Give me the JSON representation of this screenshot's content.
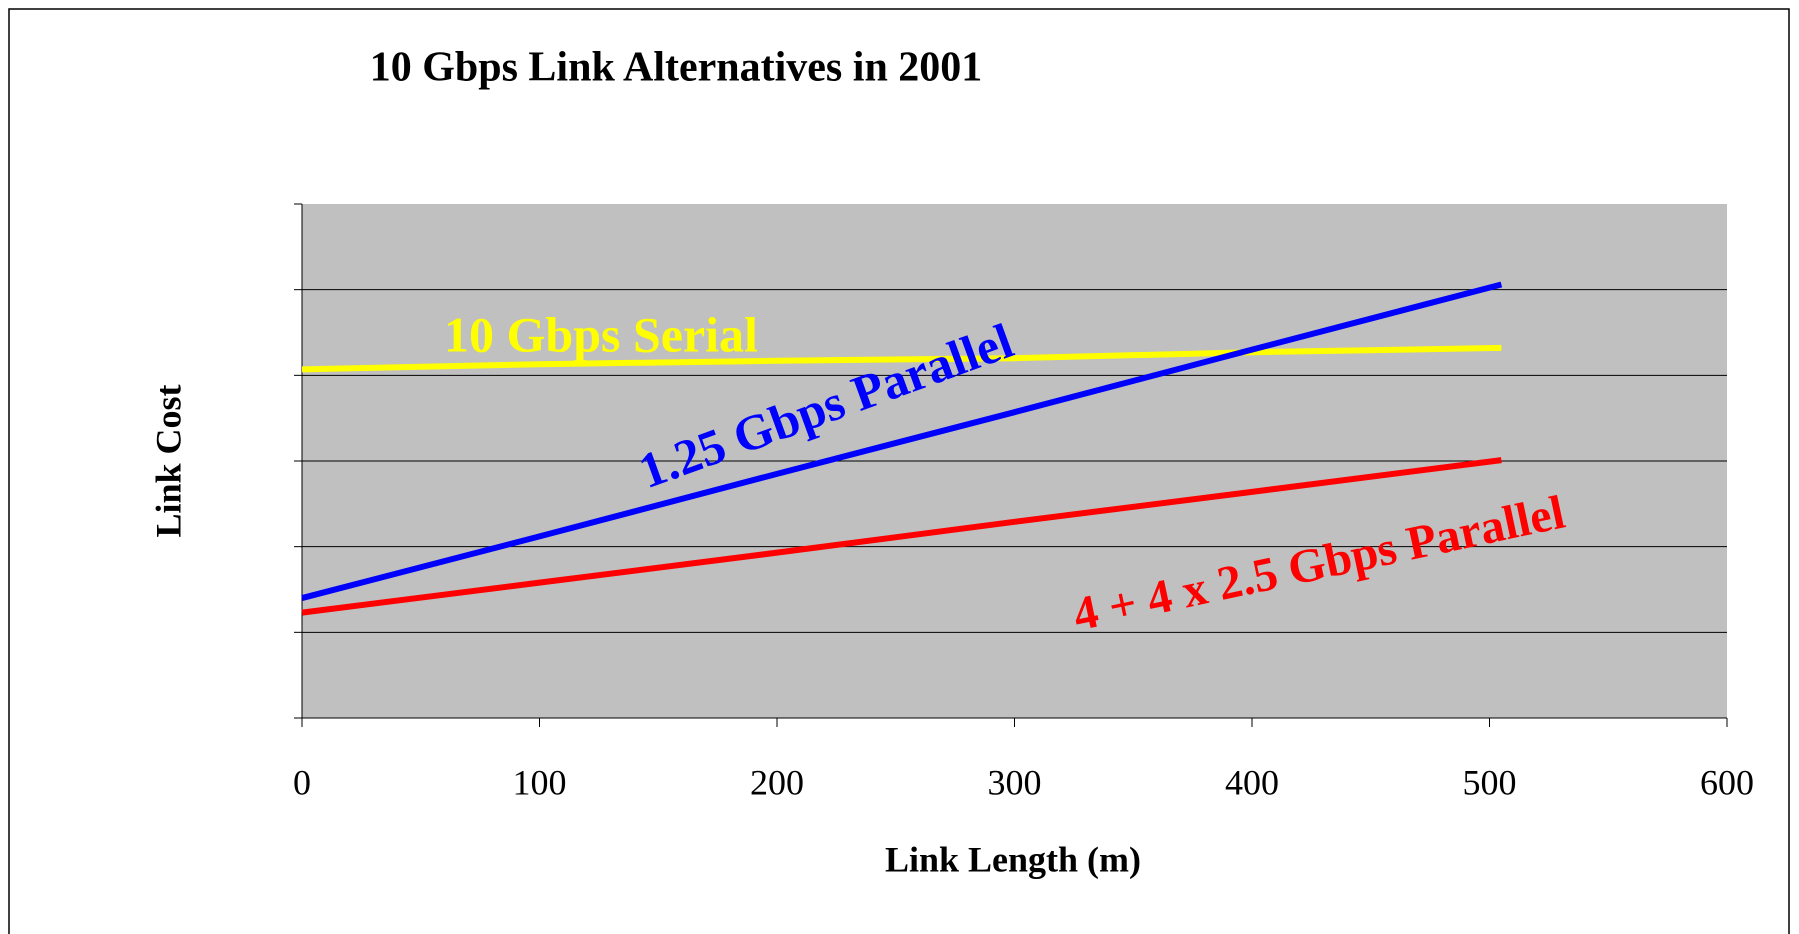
{
  "chart_data": {
    "type": "line",
    "title": "10 Gbps Link Alternatives in 2001",
    "x_label": "Link Length (m)",
    "y_label": "Link Cost",
    "xlim": [
      0,
      600
    ],
    "xticks": [
      0,
      100,
      200,
      300,
      400,
      500,
      600
    ],
    "ylim": [
      0,
      6
    ],
    "yticks": [
      0,
      1,
      2,
      3,
      4,
      5,
      6
    ],
    "grid": true,
    "series": [
      {
        "name": "10 Gbps Serial",
        "color": "#ffff00",
        "x": [
          0,
          100,
          200,
          300,
          400,
          505
        ],
        "values": [
          4.07,
          4.13,
          4.17,
          4.2,
          4.27,
          4.32
        ]
      },
      {
        "name": "1.25 Gbps Parallel",
        "color": "#0000ff",
        "x": [
          0,
          100,
          200,
          300,
          400,
          505
        ],
        "values": [
          1.4,
          2.12,
          2.85,
          3.57,
          4.3,
          5.06
        ]
      },
      {
        "name": "4 + 4 x 2.5 Gbps Parallel",
        "color": "#ff0000",
        "x": [
          0,
          100,
          200,
          300,
          400,
          505
        ],
        "values": [
          1.23,
          1.58,
          1.93,
          2.29,
          2.64,
          3.01
        ]
      }
    ]
  }
}
